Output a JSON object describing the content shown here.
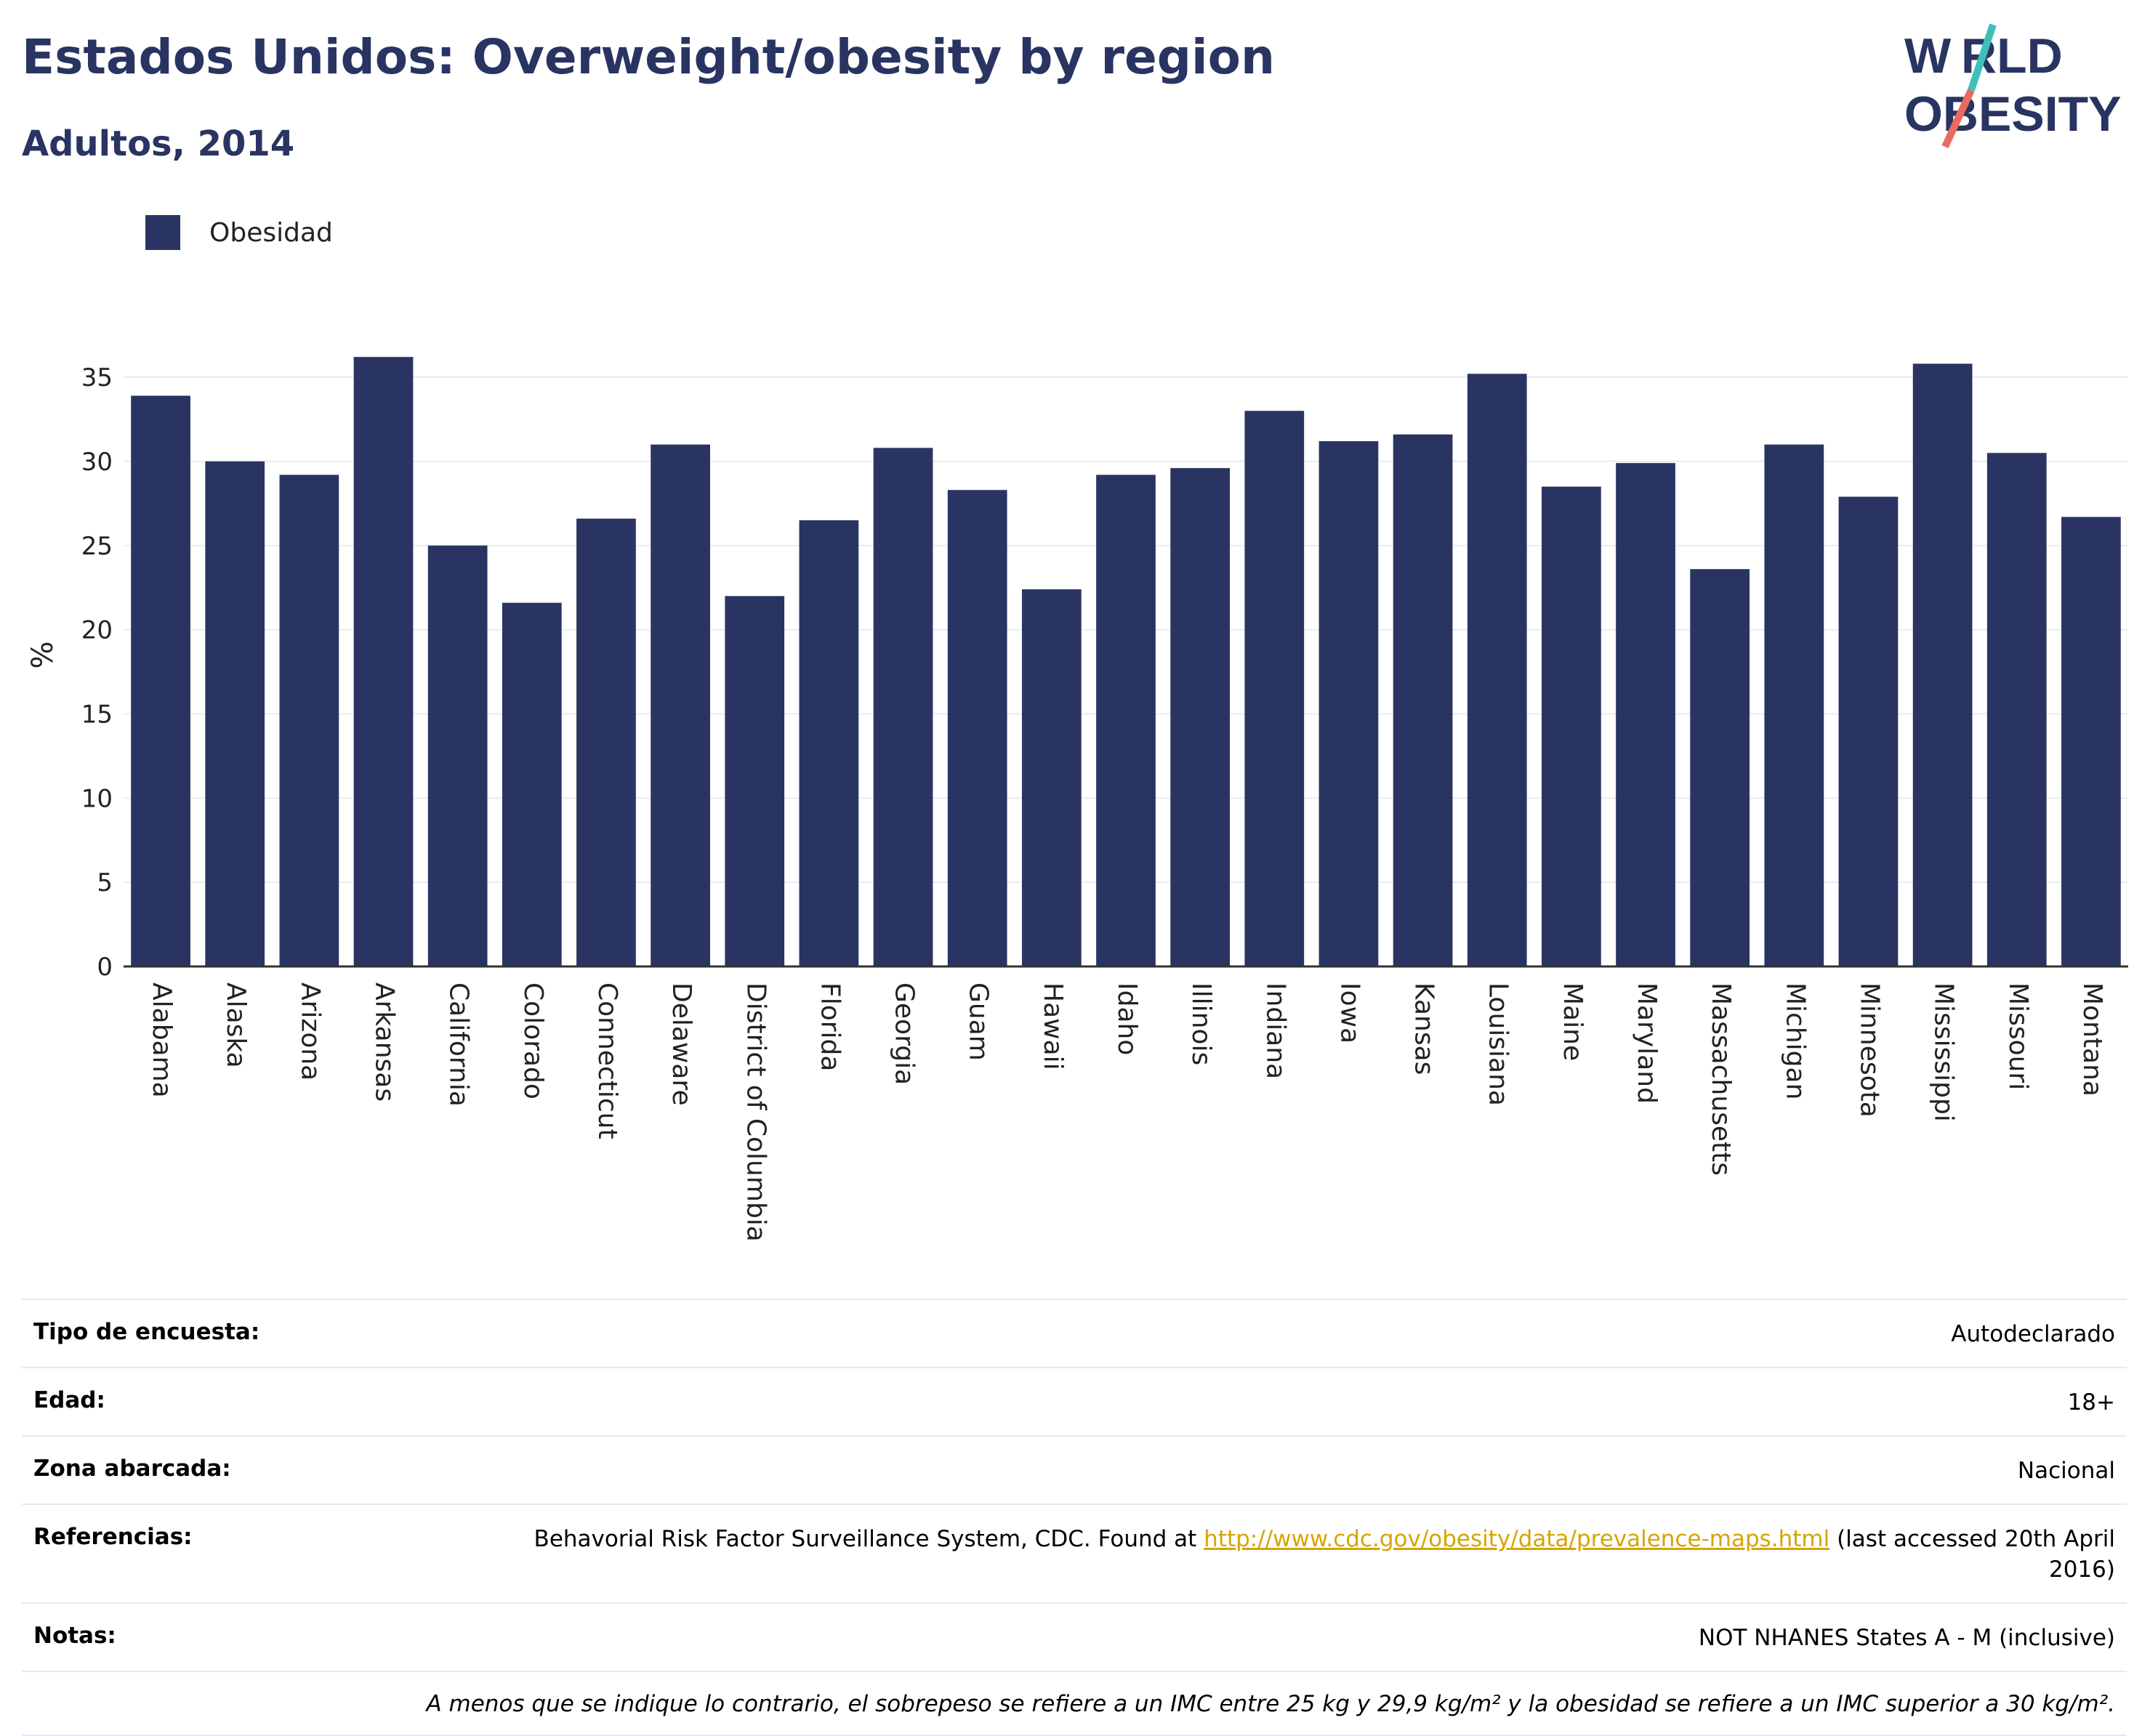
{
  "header": {
    "title": "Estados Unidos: Overweight/obesity by region",
    "subtitle": "Adultos, 2014"
  },
  "logo": {
    "line1": "WORLD",
    "line2": "OBESITY"
  },
  "colors": {
    "bar": "#293462",
    "accent_teal": "#3fbfb9",
    "accent_coral": "#e86b5f"
  },
  "chart_data": {
    "type": "bar",
    "ylabel": "%",
    "ylim": [
      0,
      37
    ],
    "yticks": [
      0,
      5,
      10,
      15,
      20,
      25,
      30,
      35
    ],
    "grid": true,
    "legend_position": "top-left",
    "categories": [
      "Alabama",
      "Alaska",
      "Arizona",
      "Arkansas",
      "California",
      "Colorado",
      "Connecticut",
      "Delaware",
      "District of Columbia",
      "Florida",
      "Georgia",
      "Guam",
      "Hawaii",
      "Idaho",
      "Illinois",
      "Indiana",
      "Iowa",
      "Kansas",
      "Louisiana",
      "Maine",
      "Maryland",
      "Massachusetts",
      "Michigan",
      "Minnesota",
      "Mississippi",
      "Missouri",
      "Montana"
    ],
    "series": [
      {
        "name": "Obesidad",
        "values": [
          33.9,
          30.0,
          29.2,
          36.2,
          25.0,
          21.6,
          26.6,
          31.0,
          22.0,
          26.5,
          30.8,
          28.3,
          22.4,
          29.2,
          29.6,
          33.0,
          31.2,
          31.6,
          35.2,
          28.5,
          29.9,
          23.6,
          31.0,
          27.9,
          35.8,
          30.5,
          26.7
        ]
      }
    ]
  },
  "meta": {
    "survey_label": "Tipo de encuesta:",
    "survey_value": "Autodeclarado",
    "age_label": "Edad:",
    "age_value": "18+",
    "area_label": "Zona abarcada:",
    "area_value": "Nacional",
    "refs_label": "Referencias:",
    "refs_text_before": "Behavorial Risk Factor Surveillance System, CDC. Found at ",
    "refs_link": "http://www.cdc.gov/obesity/data/prevalence-maps.html",
    "refs_text_after": " (last accessed 20th April 2016)",
    "notes_label": "Notas:",
    "notes_value": "NOT NHANES States A - M (inclusive)",
    "footnote": "A menos que se indique lo contrario, el sobrepeso se refiere a un IMC entre 25 kg y 29,9 kg/m² y la obesidad se refiere a un IMC superior a 30 kg/m²."
  }
}
